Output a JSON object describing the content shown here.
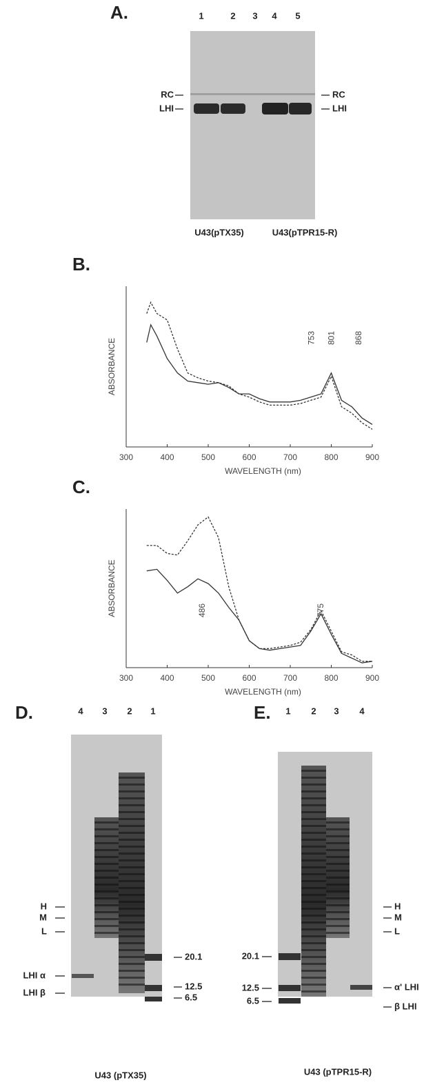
{
  "panel_a": {
    "label": "A.",
    "lanes": [
      "1",
      "2",
      "3",
      "4",
      "5"
    ],
    "left_markers": [
      "RC",
      "LHI"
    ],
    "right_markers": [
      "RC",
      "LHI"
    ],
    "captions": [
      "U43(pTX35)",
      "U43(pTPR15-R)"
    ]
  },
  "chart_data": [
    {
      "type": "line",
      "panel_label": "B.",
      "y_label": "ABSORBANCE",
      "x_label": "WAVELENGTH (nm)",
      "x": [
        350,
        360,
        375,
        400,
        425,
        450,
        475,
        500,
        525,
        550,
        575,
        600,
        625,
        650,
        675,
        700,
        725,
        750,
        775,
        800,
        825,
        850,
        875,
        900
      ],
      "series": [
        {
          "style": "solid",
          "color": "#333333",
          "values": [
            65,
            76,
            69,
            55,
            46,
            41,
            40,
            39,
            40,
            37,
            33,
            33,
            30,
            28,
            28,
            28,
            29,
            31,
            33,
            46,
            29,
            25,
            18,
            14
          ]
        },
        {
          "style": "dashed",
          "color": "#333333",
          "values": [
            83,
            90,
            83,
            79,
            61,
            46,
            43,
            41,
            40,
            38,
            33,
            31,
            28,
            26,
            26,
            26,
            27,
            29,
            31,
            44,
            25,
            21,
            15,
            11
          ]
        }
      ],
      "annotations": [
        {
          "text": "753",
          "x": 753
        },
        {
          "text": "801",
          "x": 801
        },
        {
          "text": "868",
          "x": 868
        }
      ],
      "xlim": [
        300,
        900
      ],
      "xticks": [
        300,
        400,
        500,
        600,
        700,
        800,
        900
      ],
      "ylim": [
        0,
        100
      ]
    },
    {
      "type": "line",
      "panel_label": "C.",
      "y_label": "ABSORBANCE",
      "x_label": "WAVELENGTH (nm)",
      "x": [
        350,
        375,
        400,
        425,
        450,
        475,
        500,
        525,
        550,
        575,
        600,
        625,
        650,
        675,
        700,
        725,
        750,
        775,
        800,
        825,
        850,
        875,
        900
      ],
      "series": [
        {
          "style": "solid",
          "color": "#333333",
          "values": [
            61,
            62,
            55,
            47,
            51,
            56,
            53,
            47,
            38,
            30,
            17,
            12,
            11,
            12,
            13,
            14,
            23,
            34,
            21,
            9,
            6,
            3,
            4
          ]
        },
        {
          "style": "dashed",
          "color": "#333333",
          "values": [
            77,
            77,
            72,
            71,
            80,
            90,
            95,
            82,
            51,
            30,
            17,
            12,
            12,
            13,
            14,
            16,
            24,
            36,
            23,
            10,
            8,
            4,
            4
          ]
        }
      ],
      "annotations": [
        {
          "text": "486",
          "x": 486
        },
        {
          "text": "775",
          "x": 775
        }
      ],
      "xlim": [
        300,
        900
      ],
      "xticks": [
        300,
        400,
        500,
        600,
        700,
        800,
        900
      ],
      "ylim": [
        0,
        100
      ]
    }
  ],
  "panel_d": {
    "label": "D.",
    "lanes": [
      "4",
      "3",
      "2",
      "1"
    ],
    "left_markers": [
      "H",
      "M",
      "L",
      "LHI α",
      "LHI β"
    ],
    "right_markers": [
      "20.1",
      "12.5",
      "6.5"
    ],
    "caption": "U43 (pTX35)"
  },
  "panel_e": {
    "label": "E.",
    "lanes": [
      "1",
      "2",
      "3",
      "4"
    ],
    "left_markers": [
      "20.1",
      "12.5",
      "6.5"
    ],
    "right_markers": [
      "H",
      "M",
      "L",
      "α' LHI",
      "β LHI"
    ],
    "caption": "U43 (pTPR15-R)"
  }
}
